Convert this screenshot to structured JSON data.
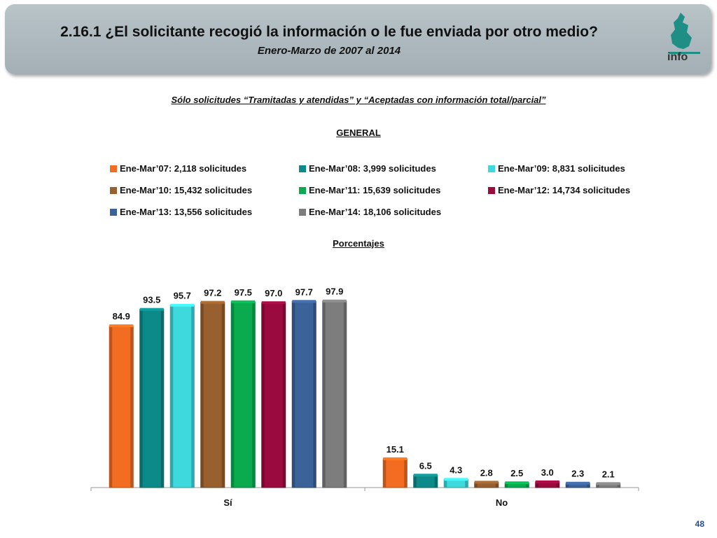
{
  "header": {
    "title": "2.16.1 ¿El solicitante recogió la información o le fue enviada por otro medio?",
    "subtitle": "Enero-Marzo de 2007 al 2014",
    "logo_text": "info"
  },
  "note": "Sólo solicitudes “Tramitadas y atendidas” y “Aceptadas con información total/parcial”",
  "section_title": "GENERAL",
  "units_label": "Porcentajes",
  "page_number": "48",
  "chart_data": {
    "type": "bar",
    "categories": [
      "Sí",
      "No"
    ],
    "series": [
      {
        "name": "Ene-Mar’07: 2,118 solicitudes",
        "color": "#f26c22",
        "values": [
          84.9,
          15.1
        ]
      },
      {
        "name": "Ene-Mar’08: 3,999 solicitudes",
        "color": "#0c8a8a",
        "values": [
          93.5,
          6.5
        ]
      },
      {
        "name": "Ene-Mar’09: 8,831 solicitudes",
        "color": "#3dd9dc",
        "values": [
          95.7,
          4.3
        ]
      },
      {
        "name": "Ene-Mar’10: 15,432 solicitudes",
        "color": "#98602e",
        "values": [
          97.2,
          2.8
        ]
      },
      {
        "name": "Ene-Mar’11: 15,639 solicitudes",
        "color": "#0aaa4f",
        "values": [
          97.5,
          2.5
        ]
      },
      {
        "name": "Ene-Mar’12: 14,734 solicitudes",
        "color": "#9a0a3e",
        "values": [
          97.0,
          3.0
        ]
      },
      {
        "name": "Ene-Mar’13: 13,556 solicitudes",
        "color": "#3b639a",
        "values": [
          97.7,
          2.3
        ]
      },
      {
        "name": "Ene-Mar’14: 18,106 solicitudes",
        "color": "#7d7d7d",
        "values": [
          97.9,
          2.1
        ]
      }
    ],
    "data_labels": [
      [
        "84.9",
        "15.1"
      ],
      [
        "93.5",
        "6.5"
      ],
      [
        "95.7",
        "4.3"
      ],
      [
        "97.2",
        "2.8"
      ],
      [
        "97.5",
        "2.5"
      ],
      [
        "97.0",
        "3.0"
      ],
      [
        "97.7",
        "2.3"
      ],
      [
        "97.9",
        "2.1"
      ]
    ],
    "ylim": [
      0,
      100
    ],
    "legend_position": "top",
    "grid": false
  }
}
